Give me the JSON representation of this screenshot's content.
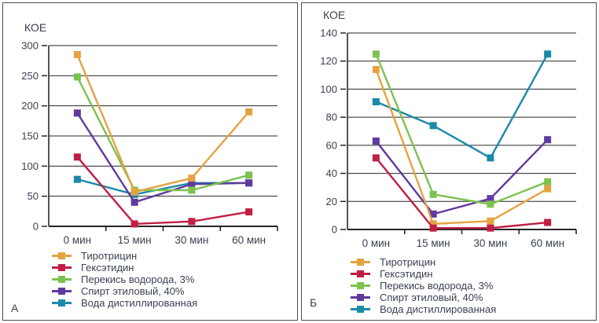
{
  "page": {
    "background": "#ffffff",
    "panel_border_color": "#4d4d4d",
    "text_color": "#3a4150",
    "grid_color": "#262626",
    "axis_color": "#1a1a1a"
  },
  "chart_data": [
    {
      "type": "line",
      "panel_label": "А",
      "ylabel": "КОЕ",
      "categories": [
        "0 мин",
        "15 мин",
        "30 мин",
        "60 мин"
      ],
      "ylim": [
        0,
        300
      ],
      "ytick_step": 50,
      "grid": true,
      "legend_position": "bottom-left",
      "marker": "square",
      "draw_order": [
        4,
        3,
        2,
        0,
        1
      ],
      "series": [
        {
          "name": "Тиротрицин",
          "color": "#E5A340",
          "values": [
            285,
            57,
            80,
            190
          ]
        },
        {
          "name": "Гексэтидин",
          "color": "#C01E44",
          "values": [
            115,
            4,
            8,
            24
          ]
        },
        {
          "name": "Перекись водорода, 3%",
          "color": "#7CC24E",
          "values": [
            248,
            60,
            60,
            85
          ]
        },
        {
          "name": "Спирт этиловый, 40%",
          "color": "#5E3A9E",
          "values": [
            188,
            40,
            70,
            72
          ]
        },
        {
          "name": "Вода дистиллированная",
          "color": "#1D89A8",
          "values": [
            78,
            53,
            72,
            72
          ]
        }
      ]
    },
    {
      "type": "line",
      "panel_label": "Б",
      "ylabel": "КОЕ",
      "categories": [
        "0 мин",
        "15 мин",
        "30 мин",
        "60 мин"
      ],
      "ylim": [
        0,
        140
      ],
      "ytick_step": 20,
      "grid": true,
      "legend_position": "bottom-left",
      "marker": "square",
      "draw_order": [
        4,
        3,
        2,
        0,
        1
      ],
      "series": [
        {
          "name": "Тиротрицин",
          "color": "#E5A340",
          "values": [
            114,
            4,
            6,
            29
          ]
        },
        {
          "name": "Гексэтидин",
          "color": "#C01E44",
          "values": [
            51,
            1,
            1,
            5
          ]
        },
        {
          "name": "Перекись водорода, 3%",
          "color": "#7CC24E",
          "values": [
            125,
            25,
            18,
            34
          ]
        },
        {
          "name": "Спирт этиловый, 40%",
          "color": "#5E3A9E",
          "values": [
            63,
            11,
            22,
            64
          ]
        },
        {
          "name": "Вода дистиллированная",
          "color": "#1D89A8",
          "values": [
            91,
            74,
            51,
            125
          ]
        }
      ]
    }
  ]
}
